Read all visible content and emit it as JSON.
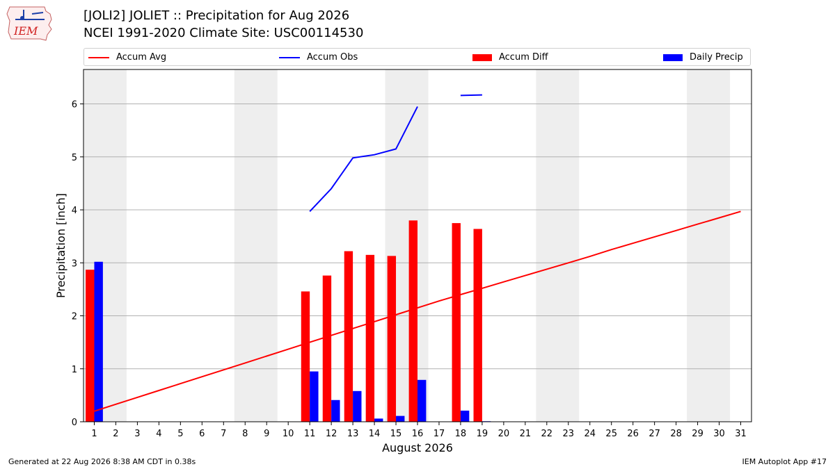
{
  "header": {
    "logo_text": "IEM",
    "title_line1": "[JOLI2] JOLIET :: Precipitation for Aug 2026",
    "title_line2": "NCEI 1991-2020 Climate Site: USC00114530"
  },
  "legend": {
    "placement": "top",
    "items": [
      {
        "label": "Accum Avg",
        "color": "#ff0000",
        "kind": "line"
      },
      {
        "label": "Accum Obs",
        "color": "#0000ff",
        "kind": "line"
      },
      {
        "label": "Accum Diff",
        "color": "#ff0000",
        "kind": "bar"
      },
      {
        "label": "Daily Precip",
        "color": "#0000ff",
        "kind": "bar"
      }
    ]
  },
  "chart_data": {
    "type": "bar",
    "xlabel": "August 2026",
    "ylabel": "Precipitation [inch]",
    "xlim": [
      0.5,
      31.5
    ],
    "ylim": [
      0,
      6.65
    ],
    "yticks": [
      0,
      1,
      2,
      3,
      4,
      5,
      6
    ],
    "grid": true,
    "x": [
      1,
      2,
      3,
      4,
      5,
      6,
      7,
      8,
      9,
      10,
      11,
      12,
      13,
      14,
      15,
      16,
      17,
      18,
      19,
      20,
      21,
      22,
      23,
      24,
      25,
      26,
      27,
      28,
      29,
      30,
      31
    ],
    "weekend_bands": [
      [
        1,
        2
      ],
      [
        8,
        9
      ],
      [
        15,
        16
      ],
      [
        22,
        23
      ],
      [
        29,
        30
      ]
    ],
    "series": [
      {
        "name": "Accum Avg",
        "kind": "line",
        "color": "#ff0000",
        "values": [
          0.2,
          0.33,
          0.46,
          0.59,
          0.72,
          0.85,
          0.98,
          1.11,
          1.24,
          1.37,
          1.5,
          1.63,
          1.76,
          1.89,
          2.02,
          2.15,
          2.28,
          2.4,
          2.52,
          2.64,
          2.76,
          2.88,
          3.0,
          3.12,
          3.25,
          3.37,
          3.49,
          3.61,
          3.73,
          3.85,
          3.97
        ]
      },
      {
        "name": "Accum Obs",
        "kind": "line",
        "color": "#0000ff",
        "values": [
          null,
          null,
          null,
          null,
          null,
          null,
          null,
          null,
          null,
          null,
          3.97,
          4.4,
          4.98,
          5.04,
          5.15,
          5.95,
          null,
          6.16,
          6.17,
          null,
          null,
          null,
          null,
          null,
          null,
          null,
          null,
          null,
          null,
          null,
          null
        ]
      },
      {
        "name": "Accum Diff",
        "kind": "bar",
        "color": "#ff0000",
        "values": [
          2.87,
          null,
          null,
          null,
          null,
          null,
          null,
          null,
          null,
          null,
          2.46,
          2.76,
          3.22,
          3.15,
          3.13,
          3.8,
          null,
          3.75,
          3.64,
          null,
          null,
          null,
          null,
          null,
          null,
          null,
          null,
          null,
          null,
          null,
          null
        ]
      },
      {
        "name": "Daily Precip",
        "kind": "bar",
        "color": "#0000ff",
        "values": [
          3.02,
          null,
          null,
          null,
          null,
          null,
          null,
          null,
          null,
          null,
          0.95,
          0.41,
          0.58,
          0.06,
          0.11,
          0.79,
          null,
          0.21,
          0.01,
          null,
          null,
          null,
          null,
          null,
          null,
          null,
          null,
          null,
          null,
          null,
          null
        ]
      }
    ]
  },
  "footer": {
    "left": "Generated at 22 Aug 2026 8:38 AM CDT in 0.38s",
    "right": "IEM Autoplot App #17"
  }
}
